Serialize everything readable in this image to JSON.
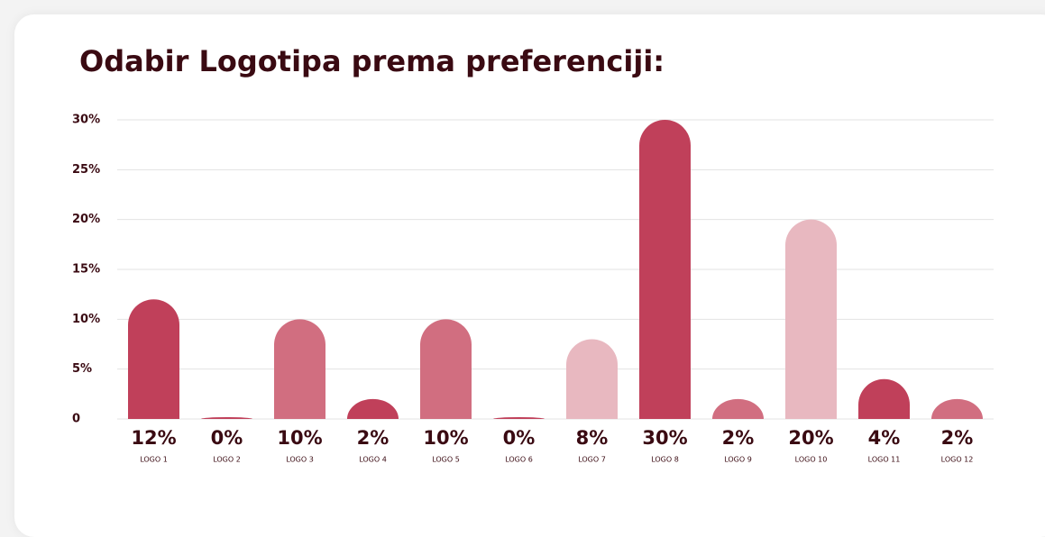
{
  "chart_data": {
    "type": "bar",
    "title": "Odabir Logotipa prema preferenciji:",
    "categories": [
      "LOGO 1",
      "LOGO 2",
      "LOGO 3",
      "LOGO 4",
      "LOGO 5",
      "LOGO 6",
      "LOGO 7",
      "LOGO 8",
      "LOGO 9",
      "LOGO 10",
      "LOGO 11",
      "LOGO 12"
    ],
    "values": [
      12,
      0,
      10,
      2,
      10,
      0,
      8,
      30,
      2,
      20,
      4,
      2
    ],
    "value_labels": [
      "12%",
      "0%",
      "10%",
      "2%",
      "10%",
      "0%",
      "8%",
      "30%",
      "2%",
      "20%",
      "4%",
      "2%"
    ],
    "colors": [
      "#c0405a",
      "#c0405a",
      "#d16e80",
      "#c0405a",
      "#d16e80",
      "#c0405a",
      "#e8b8c0",
      "#c0405a",
      "#d16e80",
      "#e8b8c0",
      "#c0405a",
      "#d16e80"
    ],
    "ylim": [
      0,
      30
    ],
    "yticks": [
      0,
      {
        "value": 5,
        "label": "5%"
      },
      {
        "value": 10,
        "label": "10%"
      },
      {
        "value": 15,
        "label": "15%"
      },
      {
        "value": 20,
        "label": "20%"
      },
      {
        "value": 25,
        "label": "25%"
      },
      {
        "value": 30,
        "label": "30%"
      }
    ],
    "grid": true
  }
}
